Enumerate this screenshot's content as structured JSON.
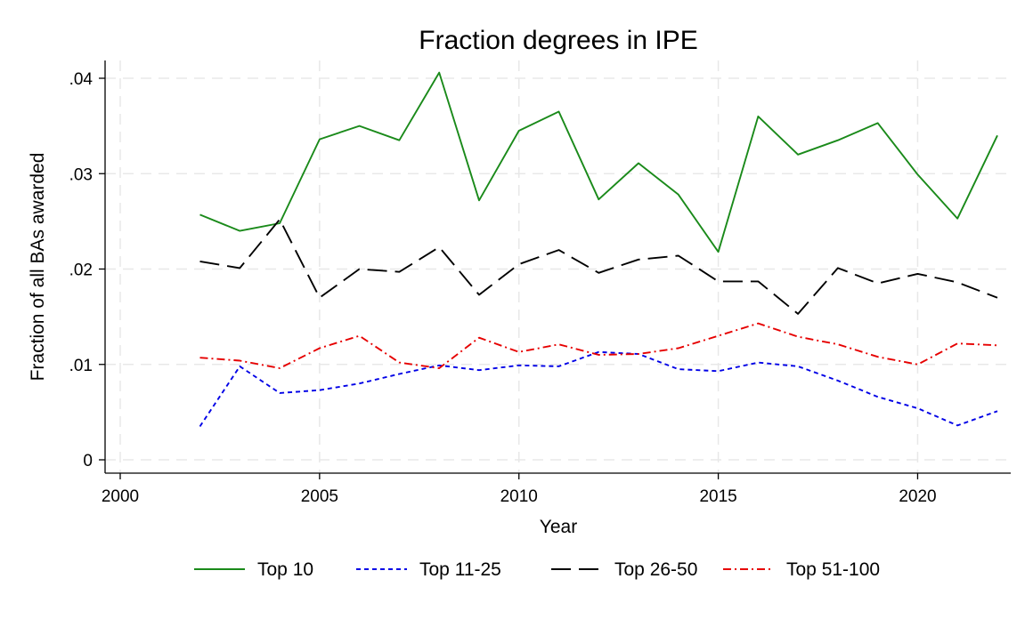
{
  "chart_data": {
    "type": "line",
    "title": "Fraction degrees in IPE",
    "xlabel": "Year",
    "ylabel": "Fraction of all BAs awarded",
    "xlim": [
      2000,
      2022
    ],
    "ylim": [
      0,
      0.04
    ],
    "xticks": [
      2000,
      2005,
      2010,
      2015,
      2020
    ],
    "xtick_labels": [
      "2000",
      "2005",
      "2010",
      "2015",
      "2020"
    ],
    "yticks": [
      0,
      0.01,
      0.02,
      0.03,
      0.04
    ],
    "ytick_labels": [
      "0",
      ".01",
      ".02",
      ".03",
      ".04"
    ],
    "grid": true,
    "legend_position": "bottom",
    "x": [
      2002,
      2003,
      2004,
      2005,
      2006,
      2007,
      2008,
      2009,
      2010,
      2011,
      2012,
      2013,
      2014,
      2015,
      2016,
      2017,
      2018,
      2019,
      2020,
      2021,
      2022
    ],
    "series": [
      {
        "name": "Top 10",
        "color": "#1a8a1a",
        "dash": "solid",
        "values": [
          0.0257,
          0.024,
          0.0248,
          0.0336,
          0.035,
          0.0335,
          0.0406,
          0.0272,
          0.0345,
          0.0365,
          0.0273,
          0.0311,
          0.0278,
          0.0218,
          0.036,
          0.032,
          0.0335,
          0.0353,
          0.0299,
          0.0253,
          0.034
        ]
      },
      {
        "name": "Top 11-25",
        "color": "#0000e6",
        "dash": "short-dash",
        "values": [
          0.0035,
          0.0098,
          0.007,
          0.0073,
          0.008,
          0.009,
          0.0099,
          0.0094,
          0.0099,
          0.0098,
          0.0113,
          0.0111,
          0.0095,
          0.0093,
          0.0102,
          0.0098,
          0.0083,
          0.0066,
          0.0054,
          0.0036,
          0.0051
        ]
      },
      {
        "name": "Top 26-50",
        "color": "#000000",
        "dash": "long-dash",
        "values": [
          0.0208,
          0.0201,
          0.0252,
          0.017,
          0.02,
          0.0197,
          0.0223,
          0.0173,
          0.0205,
          0.022,
          0.0196,
          0.021,
          0.0214,
          0.0187,
          0.0187,
          0.0153,
          0.0201,
          0.0185,
          0.0195,
          0.0186,
          0.017
        ]
      },
      {
        "name": "Top 51-100",
        "color": "#e60000",
        "dash": "dash-dot",
        "values": [
          0.0107,
          0.0104,
          0.0096,
          0.0117,
          0.013,
          0.0102,
          0.0096,
          0.0128,
          0.0113,
          0.0121,
          0.011,
          0.0111,
          0.0117,
          0.013,
          0.0143,
          0.0129,
          0.0121,
          0.0108,
          0.01,
          0.0122,
          0.012
        ]
      }
    ]
  }
}
